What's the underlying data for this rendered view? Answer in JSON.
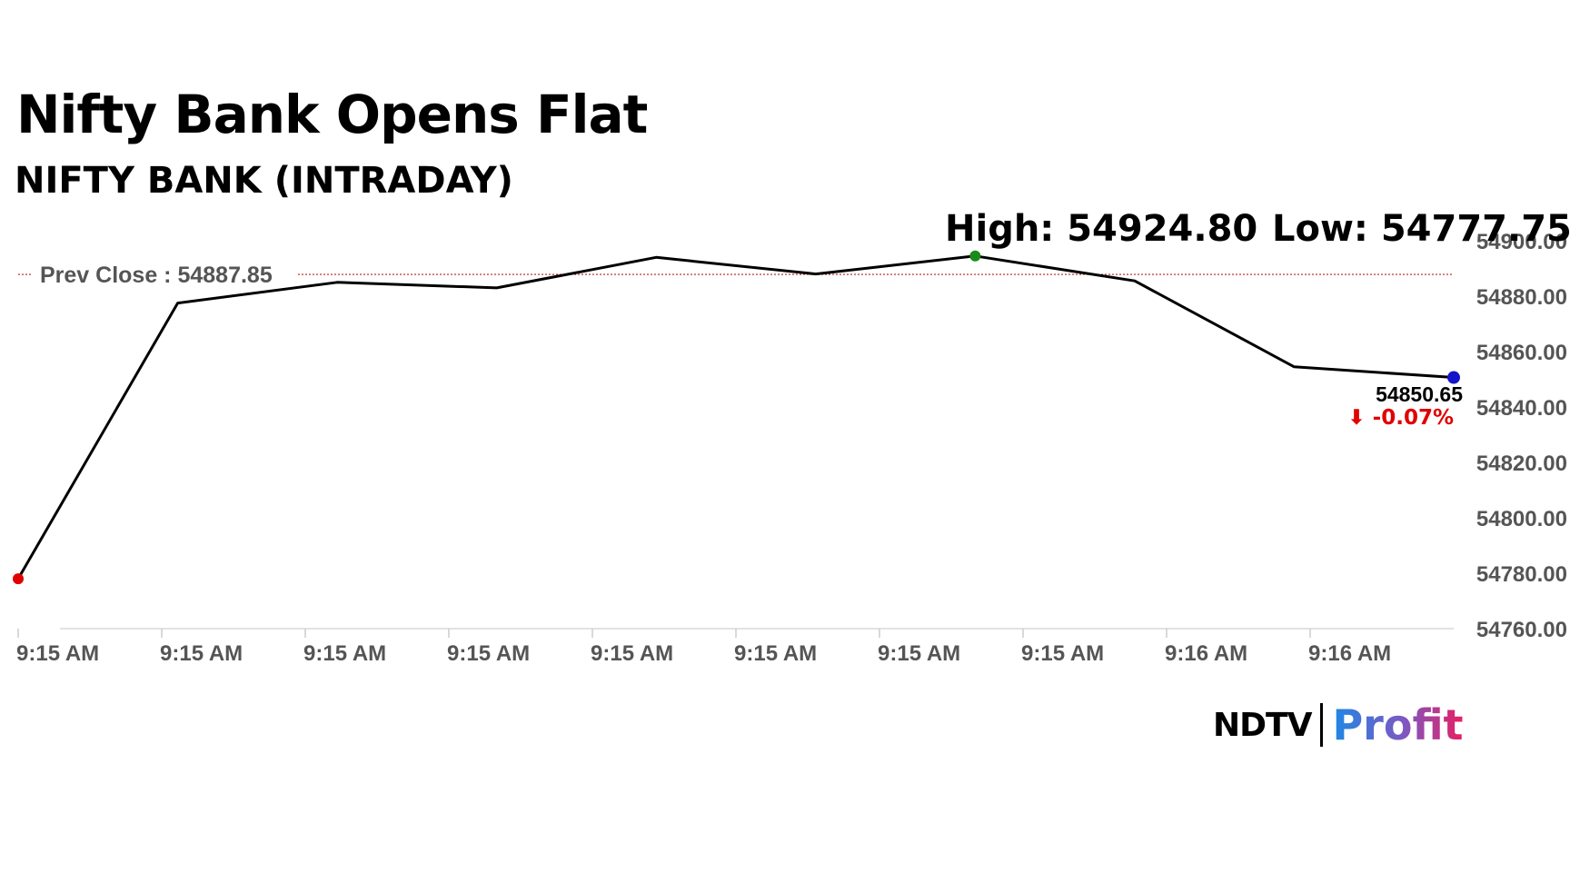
{
  "header": {
    "title": "Nifty Bank Opens Flat",
    "subtitle": "NIFTY BANK (INTRADAY)"
  },
  "chart_data": {
    "type": "line",
    "title": "Nifty Bank Opens Flat",
    "subtitle": "NIFTY BANK (INTRADAY)",
    "x_ticks": [
      "9:15 AM",
      "9:15 AM",
      "9:15 AM",
      "9:15 AM",
      "9:15 AM",
      "9:15 AM",
      "9:15 AM",
      "9:15 AM",
      "9:16 AM",
      "9:16 AM"
    ],
    "y_ticks": [
      "54760.00",
      "54780.00",
      "54800.00",
      "54820.00",
      "54840.00",
      "54860.00",
      "54880.00",
      "54900.00"
    ],
    "ylim": [
      54760,
      54900
    ],
    "series": [
      {
        "values": [
          54778,
          54877.5,
          54885,
          54883,
          54894,
          54888,
          54894.5,
          54885.5,
          54854.5,
          54850.65
        ],
        "color": "#000000"
      }
    ],
    "prev_close": {
      "label": "Prev Close : 54887.85",
      "value": 54887.85,
      "color": "#b22222"
    },
    "high_label": "High: 54924.80",
    "low_label": "Low: 54777.75",
    "last_value_label": "54850.65",
    "change_label": "⬇ -0.07%",
    "change_color": "#e00000",
    "marker_colors": {
      "start": "#e00000",
      "high": "#1a8a1a",
      "last": "#1414c8"
    },
    "grid": false,
    "legend": "none"
  },
  "branding": {
    "ndtv": "NDTV",
    "profit": "Profit"
  }
}
